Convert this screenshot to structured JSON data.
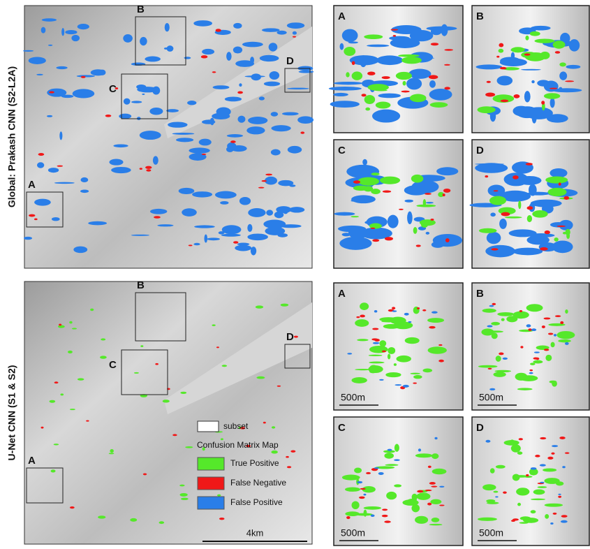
{
  "rows": [
    {
      "label": "Global: Prakash CNN (S2-L2A)",
      "boxes": [
        "A",
        "B",
        "C",
        "D"
      ],
      "insets": [
        "A",
        "B",
        "C",
        "D"
      ]
    },
    {
      "label": "U-Net CNN (S1 & S2)",
      "boxes": [
        "A",
        "B",
        "C",
        "D"
      ],
      "insets": [
        "A",
        "B",
        "C",
        "D"
      ],
      "inset_scales": [
        "500m",
        "500m",
        "500m",
        "500m"
      ],
      "scale": "4km"
    }
  ],
  "legend": {
    "subset": "subset",
    "title": "Confusion Matrix Map",
    "items": [
      {
        "label": "True Positive",
        "color": "#55e82a"
      },
      {
        "label": "False Negative",
        "color": "#f01818"
      },
      {
        "label": "False Positive",
        "color": "#2a7ee8"
      }
    ]
  }
}
